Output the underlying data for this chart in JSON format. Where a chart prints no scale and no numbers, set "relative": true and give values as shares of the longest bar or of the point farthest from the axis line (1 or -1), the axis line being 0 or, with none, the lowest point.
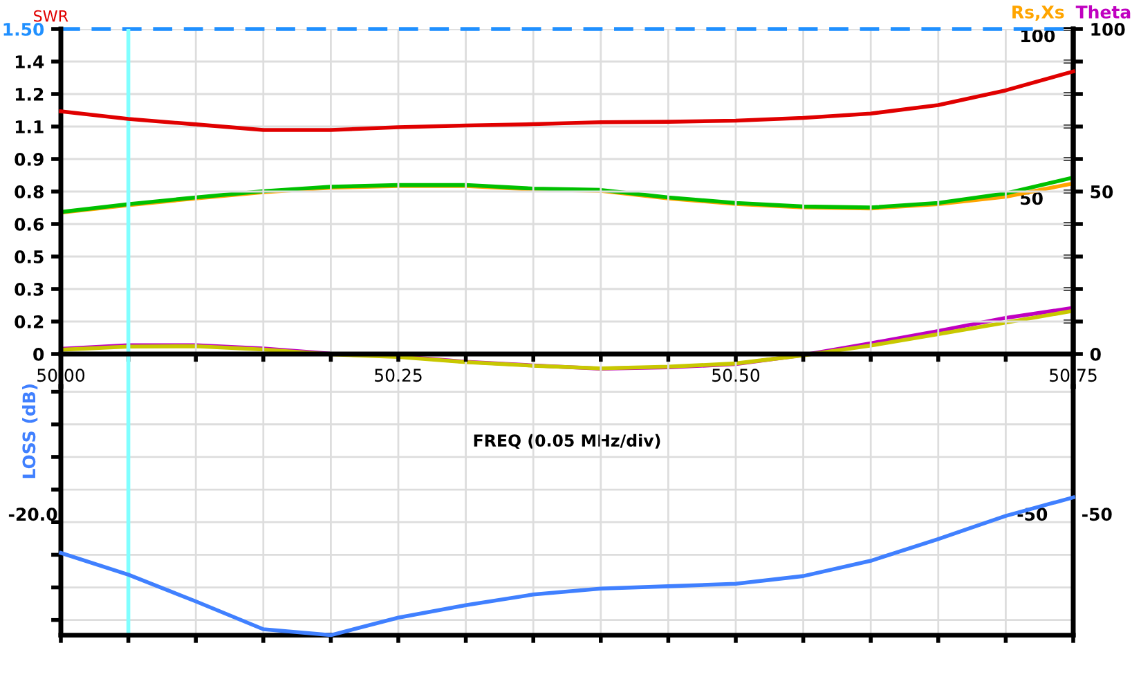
{
  "chart_data": [
    {
      "type": "line",
      "ylabel": "SWR",
      "y2label": "Theta",
      "y3label": "Rs,Xs",
      "xlabel": "FREQ (0.05 MHz/div)",
      "x": [
        50.0,
        50.05,
        50.1,
        50.15,
        50.2,
        50.25,
        50.3,
        50.35,
        50.4,
        50.45,
        50.5,
        50.55,
        50.6,
        50.65,
        50.7,
        50.75
      ],
      "series": [
        {
          "color": "#e00000",
          "values": [
            1.12,
            1.085,
            1.06,
            1.034,
            1.034,
            1.047,
            1.055,
            1.061,
            1.07,
            1.072,
            1.077,
            1.09,
            1.11,
            1.149,
            1.217,
            1.304
          ]
        },
        {
          "color": "#ffa500",
          "axis": "y3",
          "values": [
            43.5,
            45.8,
            47.9,
            49.8,
            51.2,
            51.7,
            51.7,
            50.6,
            50.2,
            47.9,
            46.2,
            45.1,
            44.8,
            46.1,
            48.4,
            52.5
          ]
        },
        {
          "color": "#00c000",
          "axis": "y3",
          "values": [
            43.7,
            46.1,
            48.2,
            50.1,
            51.5,
            52.0,
            52.0,
            50.9,
            50.5,
            48.2,
            46.5,
            45.4,
            45.1,
            46.5,
            49.4,
            54.3
          ]
        },
        {
          "color": "#c8c800",
          "axis": "y3",
          "values": [
            1.3,
            2.3,
            2.4,
            1.4,
            -0.1,
            -0.9,
            -2.5,
            -3.6,
            -4.4,
            -3.9,
            -2.9,
            -0.4,
            2.6,
            6.1,
            9.7,
            13.3
          ]
        },
        {
          "color": "#c000c0",
          "axis": "y2",
          "values": [
            1.6,
            2.7,
            2.7,
            1.7,
            0.1,
            -0.7,
            -2.4,
            -3.5,
            -4.5,
            -4.1,
            -3.1,
            -0.3,
            3.3,
            7.1,
            11.1,
            14.2
          ]
        }
      ],
      "xlim": [
        50.0,
        50.75
      ],
      "xticks": [
        {
          "value": 50.0,
          "label": "50.00"
        },
        {
          "value": 50.05,
          "label": null
        },
        {
          "value": 50.1,
          "label": null
        },
        {
          "value": 50.15,
          "label": null
        },
        {
          "value": 50.2,
          "label": null
        },
        {
          "value": 50.25,
          "label": "50.25"
        },
        {
          "value": 50.3,
          "label": null
        },
        {
          "value": 50.35,
          "label": null
        },
        {
          "value": 50.4,
          "label": null
        },
        {
          "value": 50.45,
          "label": null
        },
        {
          "value": 50.5,
          "label": "50.50"
        },
        {
          "value": 50.55,
          "label": null
        },
        {
          "value": 50.6,
          "label": null
        },
        {
          "value": 50.65,
          "label": null
        },
        {
          "value": 50.7,
          "label": null
        },
        {
          "value": 50.75,
          "label": "50.75"
        }
      ],
      "ylim": [
        -0.15,
        1.5
      ],
      "yticks": [
        0,
        {
          "value": 0.15,
          "label": "0.2"
        },
        0.3,
        {
          "value": 0.45,
          "label": "0.5"
        },
        0.6,
        {
          "value": 0.75,
          "label": "0.8"
        },
        0.9,
        {
          "value": 1.05,
          "label": "1.1"
        },
        1.2,
        {
          "value": 1.35,
          "label": "1.4"
        },
        {
          "value": 1.5,
          "label": "1.50"
        }
      ],
      "y2lim": [
        -10,
        100
      ],
      "y2ticks": [
        0,
        {
          "value": 10,
          "label": null
        },
        {
          "value": 20,
          "label": null
        },
        {
          "value": 30,
          "label": null
        },
        {
          "value": 40,
          "label": null
        },
        50,
        {
          "value": 60,
          "label": null
        },
        {
          "value": 70,
          "label": null
        },
        {
          "value": 80,
          "label": null
        },
        {
          "value": 90,
          "label": null
        },
        100
      ],
      "y3lim": [
        -10,
        100
      ],
      "y3ticks": [
        50,
        100
      ],
      "ref_lines": [
        {
          "axis": "y",
          "value": 1.5,
          "color": "#2090ff",
          "line_style": "dashed"
        },
        {
          "axis": "x",
          "value": 50.05,
          "color": "#80ffff",
          "line_style": "solid"
        }
      ],
      "grid": true,
      "legend": false,
      "marker": "none",
      "line_style": "solid"
    },
    {
      "type": "line",
      "relative": true,
      "ylabel": "LOSS (dB)",
      "x": [
        50.0,
        50.05,
        50.1,
        50.15,
        50.2,
        50.25,
        50.3,
        50.35,
        50.4,
        50.45,
        50.5,
        50.55,
        50.6,
        50.65,
        50.7,
        50.75
      ],
      "series": [
        {
          "color": "#4080ff",
          "values": [
            0.597,
            0.439,
            0.245,
            0.043,
            0,
            0.127,
            0.218,
            0.295,
            0.338,
            0.355,
            0.373,
            0.429,
            0.54,
            0.698,
            0.866,
            1
          ]
        }
      ],
      "xlim": [
        50.0,
        50.75
      ],
      "xticks": [
        {
          "value": 50.0,
          "label": null
        },
        {
          "value": 50.05,
          "label": null
        },
        {
          "value": 50.1,
          "label": null
        },
        {
          "value": 50.15,
          "label": null
        },
        {
          "value": 50.2,
          "label": null
        },
        {
          "value": 50.25,
          "label": null
        },
        {
          "value": 50.3,
          "label": null
        },
        {
          "value": 50.35,
          "label": null
        },
        {
          "value": 50.4,
          "label": null
        },
        {
          "value": 50.45,
          "label": null
        },
        {
          "value": 50.5,
          "label": null
        },
        {
          "value": 50.55,
          "label": null
        },
        {
          "value": 50.6,
          "label": null
        },
        {
          "value": 50.65,
          "label": null
        },
        {
          "value": 50.7,
          "label": null
        },
        {
          "value": 50.75,
          "label": null
        }
      ],
      "annotations": [
        "-20.0",
        "-50",
        "-50"
      ],
      "ref_lines": [
        {
          "axis": "x",
          "value": 50.05,
          "color": "#80ffff",
          "line_style": "solid"
        }
      ],
      "tick_labels": false,
      "grid": true,
      "legend": false,
      "marker": "none",
      "line_style": "solid"
    }
  ]
}
